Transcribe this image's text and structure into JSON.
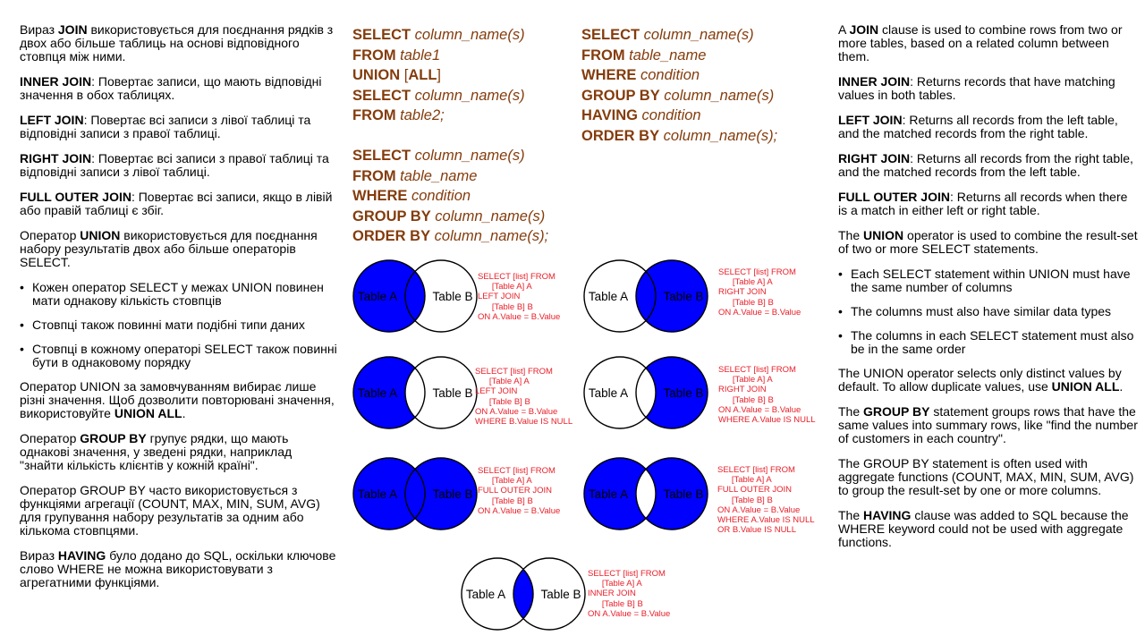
{
  "left_column": {
    "p1": [
      "Вираз ",
      "JOIN",
      " використовується для поєднання рядків з двох або більше таблиць на основі відповідного стовпця між ними."
    ],
    "p2": [
      "INNER JOIN",
      ": Повертає записи, що мають відповідні значення в обох таблицях."
    ],
    "p3": [
      "LEFT JOIN",
      ": Повертає всі записи з лівої таблиці та відповідні записи з правої таблиці."
    ],
    "p4": [
      "RIGHT JOIN",
      ": Повертає всі записи з правої таблиці та відповідні записи з лівої таблиці."
    ],
    "p5": [
      "FULL OUTER JOIN",
      ": Повертає всі записи, якщо в лівій або правій таблиці є збіг."
    ],
    "p6": [
      "Оператор ",
      "UNION",
      " використовується для поєднання набору результатів двох або більше операторів SELECT."
    ],
    "bullets": [
      "Кожен оператор SELECT у межах UNION повинен мати однакову кількість стовпців",
      "Стовпці також повинні мати подібні типи даних",
      "Стовпці в кожному операторі SELECT також повинні бути в однаковому порядку"
    ],
    "p7": [
      "Оператор UNION за замовчуванням вибирає лише різні значення. Щоб дозволити повторювані значення, використовуйте ",
      "UNION ALL",
      "."
    ],
    "p8": [
      "Оператор ",
      "GROUP BY",
      " групує рядки, що мають однакові значення, у зведені рядки, наприклад \"знайти кількість клієнтів у кожній країні\"."
    ],
    "p9": "Оператор GROUP BY часто використовується з функціями агрегації (COUNT, MAX, MIN, SUM, AVG) для групування набору результатів за одним або кількома стовпцями.",
    "p10": [
      "Вираз ",
      "HAVING",
      " було додано до SQL, оскільки ключове слово WHERE не можна використовувати з агрегатними функціями."
    ]
  },
  "right_column": {
    "p1": [
      "A ",
      "JOIN",
      " clause is used to combine rows from two or more tables, based on a related column between them."
    ],
    "p2": [
      "INNER JOIN",
      ": Returns records that have matching values in both tables."
    ],
    "p3": [
      "LEFT JOIN",
      ": Returns all records from the left table, and the matched records from the right table."
    ],
    "p4": [
      "RIGHT JOIN",
      ": Returns all records from the right table, and the matched records from the left table."
    ],
    "p5": [
      "FULL OUTER JOIN",
      ": Returns all records when there is a match in either left or right table."
    ],
    "p6": [
      "The ",
      "UNION",
      " operator is used to combine the result-set of two or more SELECT statements."
    ],
    "bullets": [
      "Each SELECT statement within UNION must have the same number of columns",
      "The columns must also have similar data types",
      "The columns in each SELECT statement must also be in the same order"
    ],
    "p7": [
      "The UNION operator selects only distinct values by default. To allow duplicate values, use ",
      "UNION ALL",
      "."
    ],
    "p8": [
      "The ",
      "GROUP BY",
      " statement groups rows that have the same values into summary rows, like \"find the number of customers in each country\"."
    ],
    "p9": "The GROUP BY statement is often used with aggregate functions (COUNT, MAX, MIN, SUM, AVG) to group the result-set by one or more columns.",
    "p10": [
      "The ",
      "HAVING",
      " clause was added to SQL because the WHERE keyword could not be used with aggregate functions."
    ]
  },
  "sql_union": {
    "l1": [
      "SELECT",
      " column_name(s)"
    ],
    "l2": [
      "FROM",
      " table1"
    ],
    "l3": [
      "UNION",
      " [",
      "ALL",
      "]"
    ],
    "l4": [
      "SELECT",
      " column_name(s)"
    ],
    "l5": [
      "FROM",
      " table2;"
    ]
  },
  "sql_select": {
    "l1": [
      "SELECT",
      " column_name(s)"
    ],
    "l2": [
      "FROM",
      " table_name"
    ],
    "l3": [
      "WHERE",
      " condition"
    ],
    "l4": [
      "GROUP BY",
      " column_name(s)"
    ],
    "l5": [
      "ORDER BY",
      " column_name(s);"
    ]
  },
  "sql_group": {
    "l1": [
      "SELECT",
      " column_name(s)"
    ],
    "l2": [
      "FROM",
      " table_name"
    ],
    "l3": [
      "WHERE",
      " condition"
    ],
    "l4": [
      "GROUP BY",
      " column_name(s)"
    ],
    "l5": [
      "HAVING",
      " condition"
    ],
    "l6": [
      "ORDER BY",
      " column_name(s);"
    ]
  },
  "venn": {
    "label_a": "Table A",
    "label_b": "Table B",
    "fill_color": "#0000ff",
    "outline_color": "#000000",
    "caption_color": "#e8202a",
    "captions": {
      "left_join": "SELECT [list] FROM\n      [Table A] A\nLEFT JOIN\n      [Table B] B\nON A.Value = B.Value",
      "right_join": "SELECT [list] FROM\n      [Table A] A\nRIGHT JOIN\n      [Table B] B\nON A.Value = B.Value",
      "left_join_null": "SELECT [list] FROM\n      [Table A] A\nLEFT JOIN\n      [Table B] B\nON A.Value = B.Value\nWHERE B.Value IS NULL",
      "right_join_null": "SELECT [list] FROM\n      [Table A] A\nRIGHT JOIN\n      [Table B] B\nON A.Value = B.Value\nWHERE A.Value IS NULL",
      "full_outer_join": "SELECT [list] FROM\n      [Table A] A\nFULL OUTER JOIN\n      [Table B] B\nON A.Value = B.Value",
      "full_outer_join_null": "SELECT [list] FROM\n      [Table A] A\nFULL OUTER JOIN\n      [Table B] B\nON A.Value = B.Value\nWHERE A.Value IS NULL\nOR B.Value IS NULL",
      "inner_join": "SELECT [list] FROM\n      [Table A] A\nINNER JOIN\n      [Table B] B\nON A.Value = B.Value"
    }
  }
}
